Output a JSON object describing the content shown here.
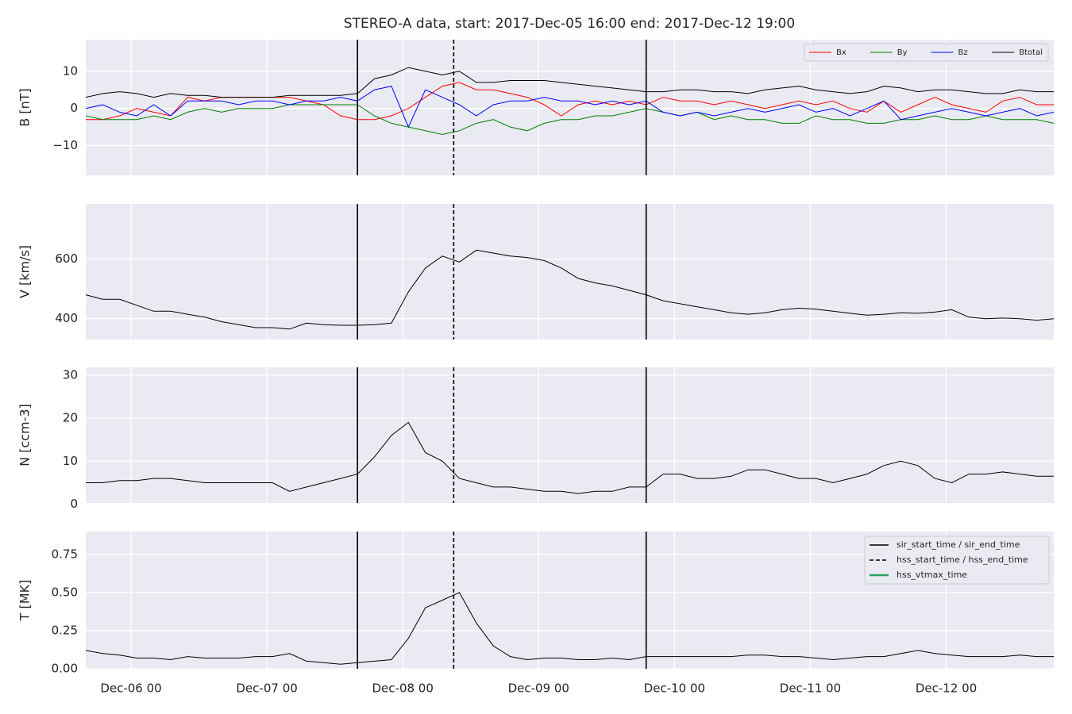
{
  "chart_data": [
    {
      "type": "line",
      "title": "STEREO-A data, start: 2017-Dec-05 16:00  end: 2017-Dec-12 19:00",
      "ylabel": "B [nT]",
      "x": [
        "Dec-05 16",
        "Dec-05 19",
        "Dec-05 22",
        "Dec-06 01",
        "Dec-06 04",
        "Dec-06 07",
        "Dec-06 10",
        "Dec-06 13",
        "Dec-06 16",
        "Dec-06 19",
        "Dec-06 22",
        "Dec-07 01",
        "Dec-07 04",
        "Dec-07 07",
        "Dec-07 10",
        "Dec-07 13",
        "Dec-07 16",
        "Dec-07 19",
        "Dec-07 22",
        "Dec-08 01",
        "Dec-08 04",
        "Dec-08 07",
        "Dec-08 10",
        "Dec-08 13",
        "Dec-08 16",
        "Dec-08 19",
        "Dec-08 22",
        "Dec-09 01",
        "Dec-09 04",
        "Dec-09 07",
        "Dec-09 10",
        "Dec-09 13",
        "Dec-09 16",
        "Dec-09 19",
        "Dec-09 22",
        "Dec-10 01",
        "Dec-10 04",
        "Dec-10 07",
        "Dec-10 10",
        "Dec-10 13",
        "Dec-10 16",
        "Dec-10 19",
        "Dec-10 22",
        "Dec-11 01",
        "Dec-11 04",
        "Dec-11 07",
        "Dec-11 10",
        "Dec-11 13",
        "Dec-11 16",
        "Dec-11 19",
        "Dec-11 22",
        "Dec-12 01",
        "Dec-12 04",
        "Dec-12 07",
        "Dec-12 10",
        "Dec-12 13",
        "Dec-12 16",
        "Dec-12 19"
      ],
      "series": [
        {
          "name": "Bx",
          "color": "#ff0000",
          "values": [
            -3,
            -3,
            -2,
            0,
            -1,
            -2,
            3,
            2,
            3,
            3,
            3,
            3,
            3,
            2,
            1,
            -2,
            -3,
            -3,
            -2,
            0,
            3,
            6,
            7,
            5,
            5,
            4,
            3,
            1,
            -2,
            1,
            2,
            1,
            2,
            1,
            3,
            2,
            2,
            1,
            2,
            1,
            0,
            1,
            2,
            1,
            2,
            0,
            -1,
            2,
            -1,
            1,
            3,
            1,
            0,
            -1,
            2,
            3,
            1,
            1
          ]
        },
        {
          "name": "By",
          "color": "#008000",
          "values": [
            -2,
            -3,
            -3,
            -3,
            -2,
            -3,
            -1,
            0,
            -1,
            0,
            0,
            0,
            1,
            1,
            1,
            1,
            1,
            -2,
            -4,
            -5,
            -6,
            -7,
            -6,
            -4,
            -3,
            -5,
            -6,
            -4,
            -3,
            -3,
            -2,
            -2,
            -1,
            0,
            -1,
            -2,
            -1,
            -3,
            -2,
            -3,
            -3,
            -4,
            -4,
            -2,
            -3,
            -3,
            -4,
            -4,
            -3,
            -3,
            -2,
            -3,
            -3,
            -2,
            -3,
            -3,
            -3,
            -4
          ]
        },
        {
          "name": "Bz",
          "color": "#0000ff",
          "values": [
            0,
            1,
            -1,
            -2,
            1,
            -2,
            2,
            2,
            2,
            1,
            2,
            2,
            1,
            2,
            2,
            3,
            2,
            5,
            6,
            -5,
            5,
            3,
            1,
            -2,
            1,
            2,
            2,
            3,
            2,
            2,
            1,
            2,
            1,
            2,
            -1,
            -2,
            -1,
            -2,
            -1,
            0,
            -1,
            0,
            1,
            -1,
            0,
            -2,
            0,
            2,
            -3,
            -2,
            -1,
            0,
            -1,
            -2,
            -1,
            0,
            -2,
            -1
          ]
        },
        {
          "name": "Btotal",
          "color": "#000000",
          "values": [
            3,
            4,
            4.5,
            4,
            3,
            4,
            3.5,
            3.5,
            3,
            3,
            3,
            3,
            3.5,
            3.5,
            3.5,
            3.5,
            4,
            8,
            9,
            11,
            10,
            9,
            10,
            7,
            7,
            7.5,
            7.5,
            7.5,
            7,
            6.5,
            6,
            5.5,
            5,
            4.5,
            4.5,
            5,
            5,
            4.5,
            4.5,
            4,
            5,
            5.5,
            6,
            5,
            4.5,
            4,
            4.5,
            6,
            5.5,
            4.5,
            5,
            5,
            4.5,
            4,
            4,
            5,
            4.5,
            4.5
          ]
        }
      ],
      "xlim": [
        "Dec-05 16",
        "Dec-12 19"
      ],
      "xticks": [
        "Dec-06 00",
        "Dec-07 00",
        "Dec-08 00",
        "Dec-09 00",
        "Dec-10 00",
        "Dec-11 00",
        "Dec-12 00"
      ],
      "ylim": [
        -18,
        18.5
      ],
      "yticks": [
        {
          "value": -10,
          "label": "−10"
        },
        0,
        10
      ],
      "grid": true,
      "legend": "upper right"
    },
    {
      "type": "line",
      "ylabel": "V [km/s]",
      "color": "#000000",
      "x": [
        "Dec-05 16",
        "Dec-05 19",
        "Dec-05 22",
        "Dec-06 01",
        "Dec-06 04",
        "Dec-06 07",
        "Dec-06 10",
        "Dec-06 13",
        "Dec-06 16",
        "Dec-06 19",
        "Dec-06 22",
        "Dec-07 01",
        "Dec-07 04",
        "Dec-07 07",
        "Dec-07 10",
        "Dec-07 13",
        "Dec-07 16",
        "Dec-07 19",
        "Dec-07 22",
        "Dec-08 01",
        "Dec-08 04",
        "Dec-08 07",
        "Dec-08 10",
        "Dec-08 13",
        "Dec-08 16",
        "Dec-08 19",
        "Dec-08 22",
        "Dec-09 01",
        "Dec-09 04",
        "Dec-09 07",
        "Dec-09 10",
        "Dec-09 13",
        "Dec-09 16",
        "Dec-09 19",
        "Dec-09 22",
        "Dec-10 01",
        "Dec-10 04",
        "Dec-10 07",
        "Dec-10 10",
        "Dec-10 13",
        "Dec-10 16",
        "Dec-10 19",
        "Dec-10 22",
        "Dec-11 01",
        "Dec-11 04",
        "Dec-11 07",
        "Dec-11 10",
        "Dec-11 13",
        "Dec-11 16",
        "Dec-11 19",
        "Dec-11 22",
        "Dec-12 01",
        "Dec-12 04",
        "Dec-12 07",
        "Dec-12 10",
        "Dec-12 13",
        "Dec-12 16",
        "Dec-12 19"
      ],
      "values": [
        480,
        465,
        465,
        445,
        425,
        425,
        415,
        405,
        390,
        380,
        370,
        370,
        365,
        385,
        380,
        378,
        378,
        380,
        385,
        490,
        570,
        610,
        590,
        630,
        620,
        610,
        605,
        595,
        570,
        535,
        520,
        510,
        495,
        480,
        460,
        450,
        440,
        430,
        420,
        415,
        420,
        430,
        435,
        432,
        425,
        418,
        412,
        415,
        420,
        418,
        422,
        430,
        405,
        400,
        402,
        400,
        395,
        400
      ],
      "xlim": [
        "Dec-05 16",
        "Dec-12 19"
      ],
      "xticks": [
        "Dec-06 00",
        "Dec-07 00",
        "Dec-08 00",
        "Dec-09 00",
        "Dec-10 00",
        "Dec-11 00",
        "Dec-12 00"
      ],
      "ylim": [
        330,
        785
      ],
      "yticks": [
        400,
        600
      ],
      "grid": true
    },
    {
      "type": "line",
      "ylabel": "N [ccm-3]",
      "color": "#000000",
      "x": [
        "Dec-05 16",
        "Dec-05 19",
        "Dec-05 22",
        "Dec-06 01",
        "Dec-06 04",
        "Dec-06 07",
        "Dec-06 10",
        "Dec-06 13",
        "Dec-06 16",
        "Dec-06 19",
        "Dec-06 22",
        "Dec-07 01",
        "Dec-07 04",
        "Dec-07 07",
        "Dec-07 10",
        "Dec-07 13",
        "Dec-07 16",
        "Dec-07 19",
        "Dec-07 22",
        "Dec-08 01",
        "Dec-08 04",
        "Dec-08 07",
        "Dec-08 10",
        "Dec-08 13",
        "Dec-08 16",
        "Dec-08 19",
        "Dec-08 22",
        "Dec-09 01",
        "Dec-09 04",
        "Dec-09 07",
        "Dec-09 10",
        "Dec-09 13",
        "Dec-09 16",
        "Dec-09 19",
        "Dec-09 22",
        "Dec-10 01",
        "Dec-10 04",
        "Dec-10 07",
        "Dec-10 10",
        "Dec-10 13",
        "Dec-10 16",
        "Dec-10 19",
        "Dec-10 22",
        "Dec-11 01",
        "Dec-11 04",
        "Dec-11 07",
        "Dec-11 10",
        "Dec-11 13",
        "Dec-11 16",
        "Dec-11 19",
        "Dec-11 22",
        "Dec-12 01",
        "Dec-12 04",
        "Dec-12 07",
        "Dec-12 10",
        "Dec-12 13",
        "Dec-12 16",
        "Dec-12 19"
      ],
      "values": [
        5,
        5,
        5.5,
        5.5,
        6,
        6,
        5.5,
        5,
        5,
        5,
        5,
        5,
        3,
        4,
        5,
        6,
        7,
        11,
        16,
        19,
        12,
        10,
        6,
        5,
        4,
        4,
        3.5,
        3,
        3,
        2.5,
        3,
        3,
        4,
        4,
        7,
        7,
        6,
        6,
        6.5,
        8,
        8,
        7,
        6,
        6,
        5,
        6,
        7,
        9,
        10,
        9,
        6,
        5,
        7,
        7,
        7.5,
        7,
        6.5,
        6.5
      ],
      "xlim": [
        "Dec-05 16",
        "Dec-12 19"
      ],
      "xticks": [
        "Dec-06 00",
        "Dec-07 00",
        "Dec-08 00",
        "Dec-09 00",
        "Dec-10 00",
        "Dec-11 00",
        "Dec-12 00"
      ],
      "ylim": [
        0.3,
        31.8
      ],
      "yticks": [
        0,
        10,
        20,
        30
      ],
      "grid": true
    },
    {
      "type": "line",
      "ylabel": "T [MK]",
      "color": "#000000",
      "x": [
        "Dec-05 16",
        "Dec-05 19",
        "Dec-05 22",
        "Dec-06 01",
        "Dec-06 04",
        "Dec-06 07",
        "Dec-06 10",
        "Dec-06 13",
        "Dec-06 16",
        "Dec-06 19",
        "Dec-06 22",
        "Dec-07 01",
        "Dec-07 04",
        "Dec-07 07",
        "Dec-07 10",
        "Dec-07 13",
        "Dec-07 16",
        "Dec-07 19",
        "Dec-07 22",
        "Dec-08 01",
        "Dec-08 04",
        "Dec-08 07",
        "Dec-08 10",
        "Dec-08 13",
        "Dec-08 16",
        "Dec-08 19",
        "Dec-08 22",
        "Dec-09 01",
        "Dec-09 04",
        "Dec-09 07",
        "Dec-09 10",
        "Dec-09 13",
        "Dec-09 16",
        "Dec-09 19",
        "Dec-09 22",
        "Dec-10 01",
        "Dec-10 04",
        "Dec-10 07",
        "Dec-10 10",
        "Dec-10 13",
        "Dec-10 16",
        "Dec-10 19",
        "Dec-10 22",
        "Dec-11 01",
        "Dec-11 04",
        "Dec-11 07",
        "Dec-11 10",
        "Dec-11 13",
        "Dec-11 16",
        "Dec-11 19",
        "Dec-11 22",
        "Dec-12 01",
        "Dec-12 04",
        "Dec-12 07",
        "Dec-12 10",
        "Dec-12 13",
        "Dec-12 16",
        "Dec-12 19"
      ],
      "values": [
        0.12,
        0.1,
        0.09,
        0.07,
        0.07,
        0.06,
        0.08,
        0.07,
        0.07,
        0.07,
        0.08,
        0.08,
        0.1,
        0.05,
        0.04,
        0.03,
        0.04,
        0.05,
        0.06,
        0.2,
        0.4,
        0.45,
        0.5,
        0.3,
        0.15,
        0.08,
        0.06,
        0.07,
        0.07,
        0.06,
        0.06,
        0.07,
        0.06,
        0.08,
        0.08,
        0.08,
        0.08,
        0.08,
        0.08,
        0.09,
        0.09,
        0.08,
        0.08,
        0.07,
        0.06,
        0.07,
        0.08,
        0.08,
        0.1,
        0.12,
        0.1,
        0.09,
        0.08,
        0.08,
        0.08,
        0.09,
        0.08,
        0.08
      ],
      "xlim": [
        "Dec-05 16",
        "Dec-12 19"
      ],
      "xticks": [
        "Dec-06 00",
        "Dec-07 00",
        "Dec-08 00",
        "Dec-09 00",
        "Dec-10 00",
        "Dec-11 00",
        "Dec-12 00"
      ],
      "ylim": [
        0,
        0.9
      ],
      "yticks": [
        {
          "value": 0,
          "label": "0.00"
        },
        {
          "value": 0.25,
          "label": "0.25"
        },
        {
          "value": 0.5,
          "label": "0.50"
        },
        {
          "value": 0.75,
          "label": "0.75"
        }
      ],
      "grid": true,
      "legend": "upper right",
      "event_lines": [
        {
          "name": "sir_start_time / sir_end_time",
          "style": "solid",
          "color": "#000000",
          "times": [
            "Dec-07 16",
            "Dec-09 19"
          ]
        },
        {
          "name": "hss_start_time / hss_end_time",
          "style": "dashed",
          "color": "#000000",
          "times": [
            "Dec-08 09"
          ]
        },
        {
          "name": "hss_vtmax_time",
          "style": "solid",
          "color": "#2ca25f",
          "times": []
        }
      ]
    }
  ]
}
